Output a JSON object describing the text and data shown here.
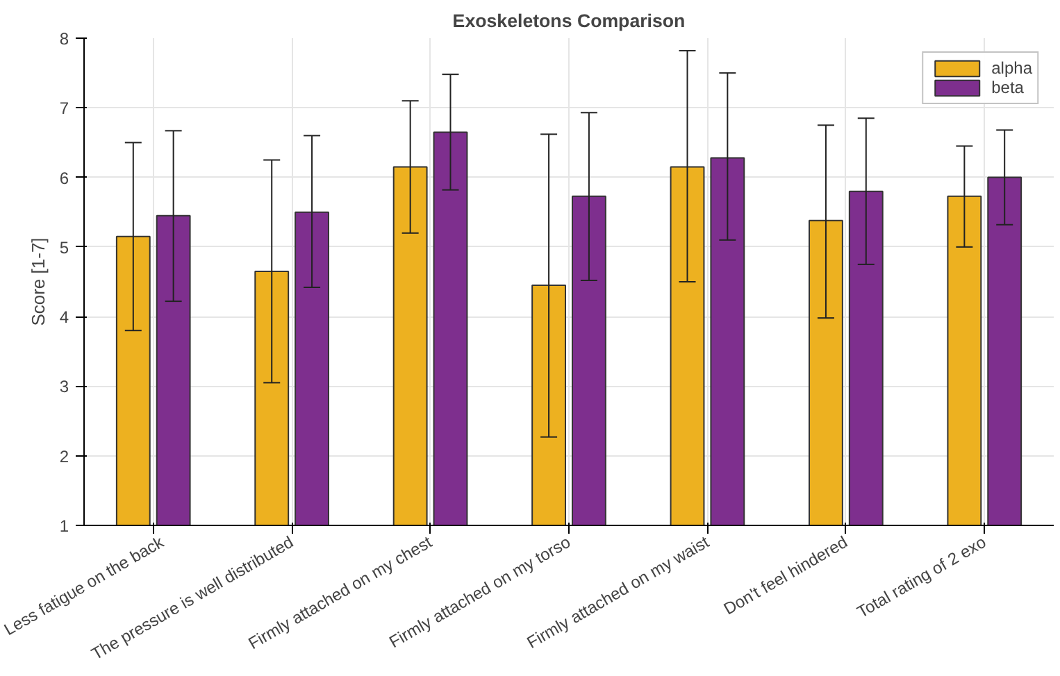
{
  "chart_data": {
    "type": "bar",
    "title": "Exoskeletons Comparison",
    "ylabel": "Score [1-7]",
    "categories": [
      "Less fatigue on the back",
      "The pressure is well distributed",
      "Firmly attached on my chest",
      "Firmly attached on my torso",
      "Firmly attached on my waist",
      "Don't feel hindered",
      "Total rating of 2 exo"
    ],
    "series": [
      {
        "name": "alpha",
        "color": "#edb120",
        "values": [
          5.15,
          4.65,
          6.15,
          4.45,
          6.15,
          5.38,
          5.73
        ],
        "errors": [
          [
            3.8,
            6.5
          ],
          [
            3.05,
            6.25
          ],
          [
            5.2,
            7.1
          ],
          [
            2.27,
            6.62
          ],
          [
            4.5,
            7.82
          ],
          [
            3.98,
            6.75
          ],
          [
            5.0,
            6.45
          ]
        ]
      },
      {
        "name": "beta",
        "color": "#7e2f8e",
        "values": [
          5.45,
          5.5,
          6.65,
          5.73,
          6.28,
          5.8,
          6.0
        ],
        "errors": [
          [
            4.22,
            6.67
          ],
          [
            4.42,
            6.6
          ],
          [
            5.82,
            7.48
          ],
          [
            4.52,
            6.93
          ],
          [
            5.1,
            7.5
          ],
          [
            4.75,
            6.85
          ],
          [
            5.32,
            6.68
          ]
        ]
      }
    ],
    "ylim": [
      1,
      8
    ],
    "yticks": [
      1,
      2,
      3,
      4,
      5,
      6,
      7,
      8
    ],
    "grid": true,
    "legend": "top right"
  }
}
